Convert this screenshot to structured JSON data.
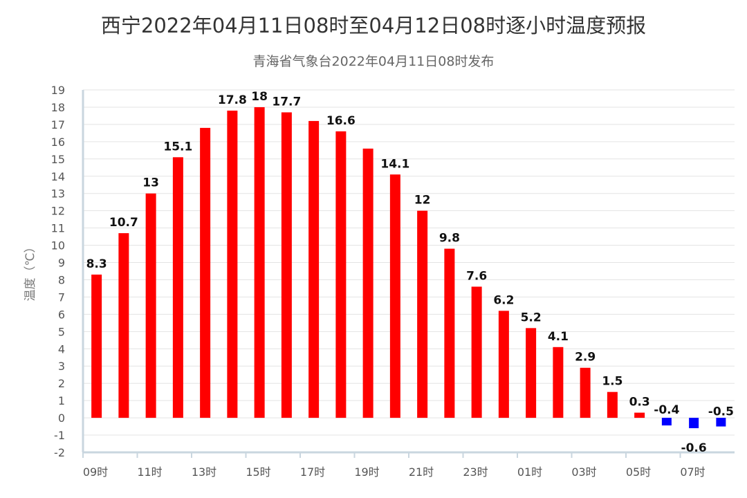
{
  "chart_data": {
    "type": "bar",
    "title": "西宁2022年04月11日08时至04月12日08时逐小时温度预报",
    "subtitle": "青海省气象台2022年04月11日08时发布",
    "ylabel": "温度（℃）",
    "xlabel": "",
    "ylim": [
      -2,
      19
    ],
    "grid": true,
    "x_tick_labels": [
      "09时",
      "11时",
      "13时",
      "15时",
      "17时",
      "19时",
      "21时",
      "23时",
      "01时",
      "03时",
      "05时",
      "07时"
    ],
    "categories": [
      "09",
      "10",
      "11",
      "12",
      "13",
      "14",
      "15",
      "16",
      "17",
      "18",
      "19",
      "20",
      "21",
      "22",
      "23",
      "00",
      "01",
      "02",
      "03",
      "04",
      "05",
      "06",
      "07",
      "08"
    ],
    "values": [
      8.3,
      10.7,
      13,
      15.1,
      16.8,
      17.8,
      18,
      17.7,
      17.2,
      16.6,
      15.6,
      14.1,
      12,
      9.8,
      7.6,
      6.2,
      5.2,
      4.1,
      2.9,
      1.5,
      0.3,
      -0.4,
      -0.6,
      -0.5
    ],
    "data_labels": [
      "8.3",
      "10.7",
      "13",
      "15.1",
      "",
      "17.8",
      "18",
      "17.7",
      "",
      "16.6",
      "",
      "14.1",
      "12",
      "9.8",
      "7.6",
      "6.2",
      "5.2",
      "4.1",
      "2.9",
      "1.5",
      "0.3",
      "-0.4",
      "-0.6",
      "-0.5"
    ],
    "colors": {
      "positive": "#ff0000",
      "negative": "#0000ff"
    }
  }
}
